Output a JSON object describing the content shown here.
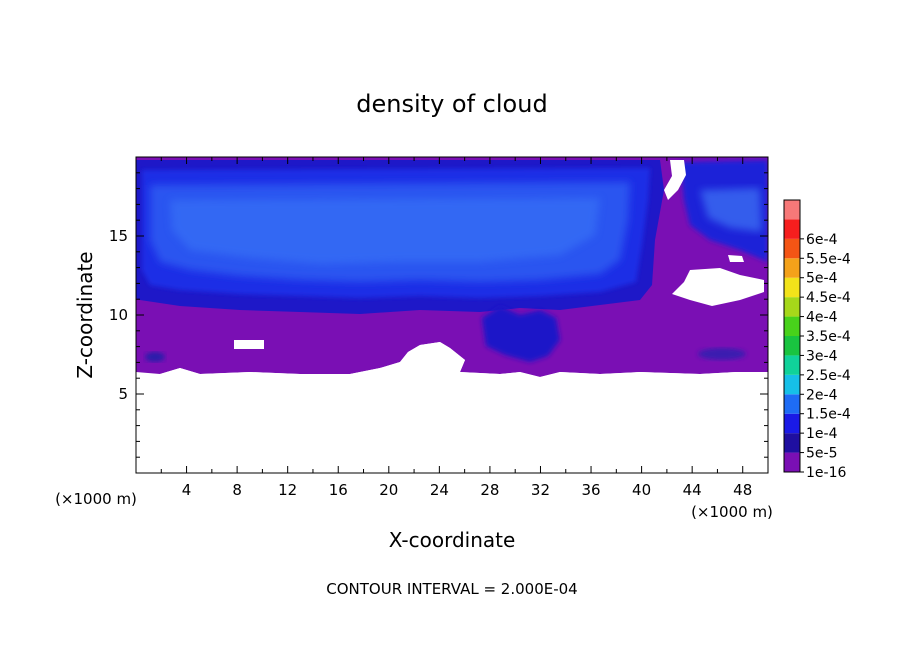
{
  "chart_data": {
    "type": "heatmap",
    "title": "density of cloud",
    "xlabel": "X-coordinate",
    "ylabel": "Z-coordinate",
    "x_unit_left": "(×1000 m)",
    "x_unit_right": "(×1000 m)",
    "footer": "CONTOUR INTERVAL = 2.000E-04",
    "xlim": [
      0,
      50
    ],
    "ylim": [
      0,
      20
    ],
    "x_ticks": [
      4,
      8,
      12,
      16,
      20,
      24,
      28,
      32,
      36,
      40,
      44,
      48
    ],
    "y_ticks": [
      5,
      10,
      15
    ],
    "colorbar": {
      "levels": [
        "1e-16",
        "5e-5",
        "1e-4",
        "1.5e-4",
        "2e-4",
        "2.5e-4",
        "3e-4",
        "3.5e-4",
        "4e-4",
        "4.5e-4",
        "5e-4",
        "5.5e-4",
        "6e-4"
      ],
      "colors": [
        "#7a0fb4",
        "#1f0fa0",
        "#1a1ae6",
        "#1e6cf5",
        "#16c0e8",
        "#10d29a",
        "#19c440",
        "#48d21b",
        "#a6d81a",
        "#f2e31a",
        "#f4a21a",
        "#f45515",
        "#f61e1e",
        "#f77878"
      ]
    },
    "regions": {
      "cloud_top": 19.5,
      "cloud_base": 6.4,
      "blue_layer_base": 10.6,
      "note_values": "purple band near base ~1e-16, upper layer ~5e-5 to 1e-4"
    }
  }
}
